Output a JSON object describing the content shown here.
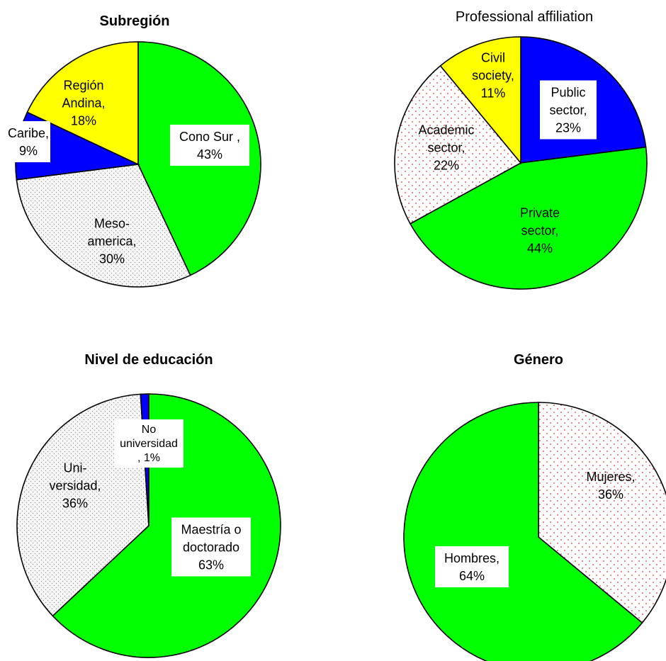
{
  "chart_data": [
    {
      "type": "pie",
      "title": "Subregión",
      "slices": [
        {
          "label": "Cono Sur",
          "value": 43,
          "label_text": [
            "Cono Sur ,",
            "43%"
          ],
          "color": "#00ff00",
          "pattern": "solid"
        },
        {
          "label": "Meso-america",
          "value": 30,
          "label_text": [
            "Meso-",
            "america,",
            "30%"
          ],
          "color": "#f5f5f5",
          "pattern": "gray-dots"
        },
        {
          "label": "Caribe",
          "value": 9,
          "label_text": [
            "Caribe,",
            "9%"
          ],
          "color": "#0000ff",
          "pattern": "solid"
        },
        {
          "label": "Región Andina",
          "value": 18,
          "label_text": [
            "Región",
            "Andina,",
            "18%"
          ],
          "color": "#ffff00",
          "pattern": "solid"
        }
      ]
    },
    {
      "type": "pie",
      "title": "Professional affiliation",
      "slices": [
        {
          "label": "Public sector",
          "value": 23,
          "label_text": [
            "Public",
            "sector,",
            "23%"
          ],
          "color": "#0000ff",
          "pattern": "solid"
        },
        {
          "label": "Private sector",
          "value": 44,
          "label_text": [
            "Private",
            "sector,",
            "44%"
          ],
          "color": "#00ff00",
          "pattern": "solid"
        },
        {
          "label": "Academic sector",
          "value": 22,
          "label_text": [
            "Academic",
            "sector,",
            "22%"
          ],
          "color": "#fff5f5",
          "pattern": "red-dots"
        },
        {
          "label": "Civil society",
          "value": 11,
          "label_text": [
            "Civil",
            "society,",
            "11%"
          ],
          "color": "#ffff00",
          "pattern": "solid"
        }
      ]
    },
    {
      "type": "pie",
      "title": "Nivel de educación",
      "slices": [
        {
          "label": "Maestría o doctorado",
          "value": 63,
          "label_text": [
            "Maestría o",
            "doctorado",
            "63%"
          ],
          "color": "#00ff00",
          "pattern": "solid"
        },
        {
          "label": "Uni-versidad",
          "value": 36,
          "label_text": [
            "Uni-",
            "versidad,",
            "36%"
          ],
          "color": "#f5f5f5",
          "pattern": "gray-dots"
        },
        {
          "label": "No universidad",
          "value": 1,
          "label_text": [
            "No",
            "universidad",
            ", 1%"
          ],
          "color": "#0000ff",
          "pattern": "solid"
        }
      ]
    },
    {
      "type": "pie",
      "title": "Género",
      "slices": [
        {
          "label": "Mujeres",
          "value": 36,
          "label_text": [
            "Mujeres,",
            "36%"
          ],
          "color": "#fff5f5",
          "pattern": "red-dots"
        },
        {
          "label": "Hombres",
          "value": 64,
          "label_text": [
            "Hombres,",
            "64%"
          ],
          "color": "#00ff00",
          "pattern": "solid"
        }
      ]
    }
  ]
}
